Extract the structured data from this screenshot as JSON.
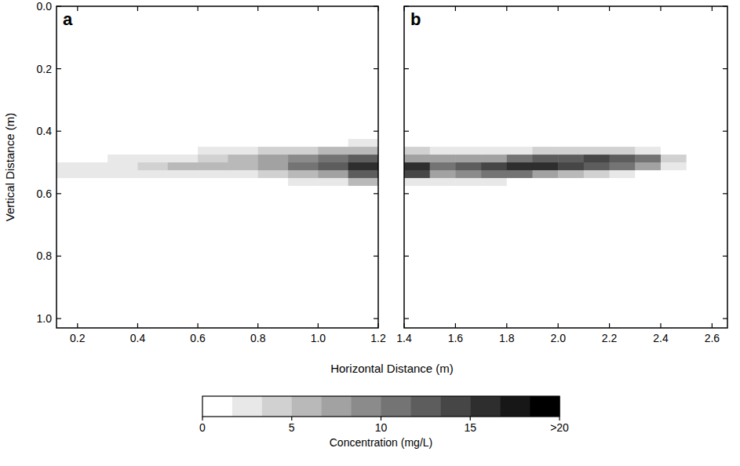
{
  "chart_data": {
    "type": "heatmap",
    "xlabel": "Horizontal Distance (m)",
    "ylabel": "Vertical Distance (m)",
    "colorbar": {
      "label": "Concentration (mg/L)",
      "range": [
        0,
        20
      ],
      "levels": 12,
      "ticks": [
        0,
        5,
        10,
        15,
        {
          "value": 20,
          "label": ">20"
        }
      ]
    },
    "panels": [
      {
        "title": "a",
        "xlim": [
          0.13,
          1.2
        ],
        "xticks": [
          0.2,
          0.4,
          0.6,
          0.8,
          {
            "value": 1,
            "label": "1.0"
          },
          1.2
        ],
        "ylim": [
          1.03,
          0
        ],
        "yticks": [
          {
            "value": 0,
            "label": "0.0"
          },
          0.2,
          0.4,
          0.6,
          0.8,
          {
            "value": 1,
            "label": "1.0"
          }
        ],
        "x_edges": [
          0.13,
          0.2,
          0.3,
          0.4,
          0.5,
          0.6,
          0.7,
          0.8,
          0.9,
          1.0,
          1.1,
          1.2
        ],
        "y_edges": [
          0.4,
          0.425,
          0.45,
          0.475,
          0.5,
          0.525,
          0.55,
          0.575,
          0.6
        ],
        "cells": [
          [
            0,
            0,
            0,
            0,
            0,
            0,
            0,
            0,
            0,
            0,
            0
          ],
          [
            0,
            0,
            0,
            0,
            0,
            0,
            1,
            1,
            1,
            1,
            2
          ],
          [
            0,
            0,
            0,
            1,
            1,
            2,
            3,
            4,
            4,
            5,
            6
          ],
          [
            1,
            1,
            2,
            2,
            3,
            4,
            6,
            8,
            9,
            11,
            13
          ],
          [
            2,
            3,
            3,
            4,
            5,
            5,
            6,
            8,
            10,
            12,
            15
          ],
          [
            2,
            3,
            3,
            3,
            3,
            3,
            3,
            4,
            6,
            8,
            12
          ],
          [
            1,
            1,
            1,
            1,
            1,
            1,
            1,
            1,
            2,
            3,
            5
          ],
          [
            0,
            0,
            0,
            0,
            0,
            0,
            0,
            0,
            0,
            1,
            1
          ]
        ]
      },
      {
        "title": "b",
        "xlim": [
          1.4,
          2.66
        ],
        "xticks": [
          1.4,
          1.6,
          1.8,
          {
            "value": 2,
            "label": "2.0"
          },
          2.2,
          2.4,
          2.6
        ],
        "ylim": [
          1.03,
          0
        ],
        "yticks": [
          {
            "value": 0,
            "label": "0.0"
          },
          0.2,
          0.4,
          0.6,
          0.8,
          {
            "value": 1,
            "label": "1.0"
          }
        ],
        "tick_labels": "x",
        "x_edges": [
          1.4,
          1.5,
          1.6,
          1.7,
          1.8,
          1.9,
          2.0,
          2.1,
          2.2,
          2.3,
          2.4,
          2.5,
          2.6
        ],
        "y_edges": [
          0.4,
          0.425,
          0.45,
          0.475,
          0.5,
          0.525,
          0.55,
          0.575,
          0.6
        ],
        "cells": [
          [
            0,
            0,
            0,
            0,
            0,
            0,
            0,
            0,
            0,
            0,
            0,
            0
          ],
          [
            1,
            1,
            1,
            1,
            1,
            1,
            0,
            0,
            0,
            0,
            0,
            0
          ],
          [
            4,
            3,
            3,
            3,
            3,
            4,
            4,
            4,
            4,
            3,
            1,
            0
          ],
          [
            8,
            7,
            7,
            8,
            10,
            12,
            13,
            14,
            13,
            11,
            4,
            1
          ],
          [
            16,
            11,
            12,
            14,
            15,
            15,
            14,
            13,
            11,
            8,
            2,
            0
          ],
          [
            14,
            8,
            9,
            10,
            10,
            8,
            6,
            4,
            2,
            1,
            0,
            0
          ],
          [
            3,
            2,
            2,
            2,
            1,
            1,
            0,
            0,
            0,
            0,
            0,
            0
          ],
          [
            0,
            0,
            0,
            0,
            0,
            0,
            0,
            0,
            0,
            0,
            0,
            0
          ]
        ]
      }
    ]
  }
}
